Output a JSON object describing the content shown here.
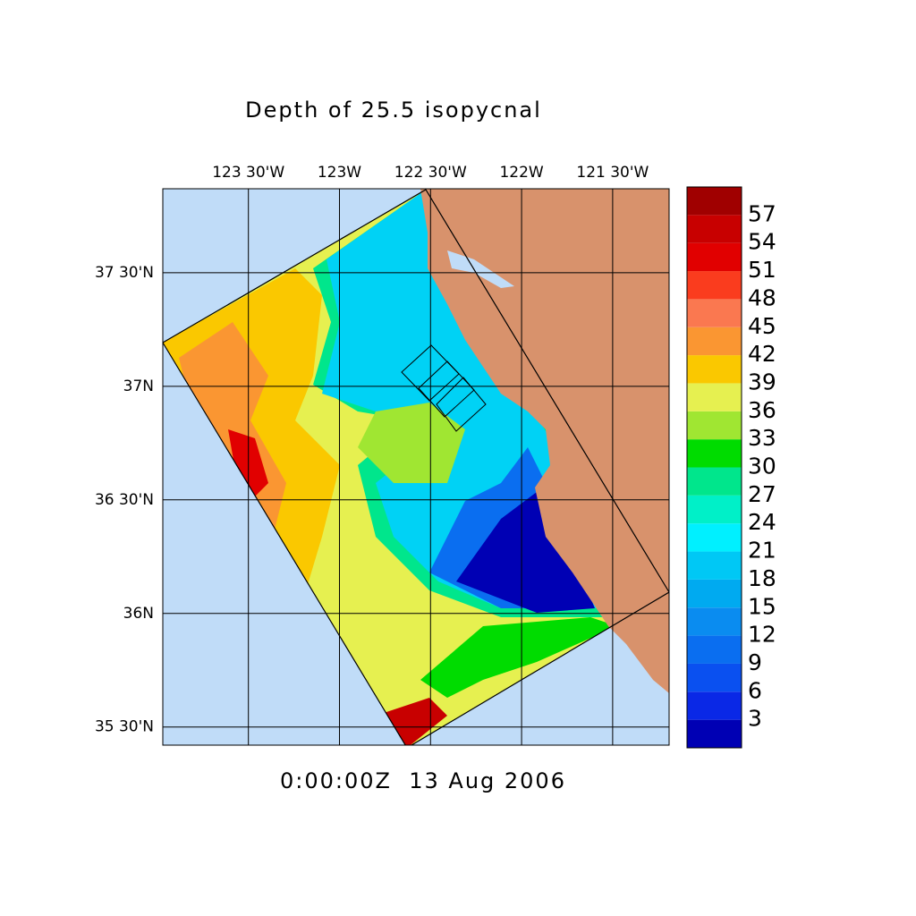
{
  "title": "Depth of 25.5 isopycnal",
  "timestamp": "0:00:00Z  13 Aug 2006",
  "map": {
    "xlim": [
      -123.97,
      -121.19
    ],
    "ylim": [
      35.42,
      37.87
    ],
    "lon_ticks": [
      {
        "value": -123.5,
        "label": "123 30'W"
      },
      {
        "value": -123,
        "label": "123W"
      },
      {
        "value": -122.5,
        "label": "122 30'W"
      },
      {
        "value": -122,
        "label": "122W"
      },
      {
        "value": -121.5,
        "label": "121 30'W"
      }
    ],
    "lat_ticks": [
      {
        "value": 37.5,
        "label": "37 30'N"
      },
      {
        "value": 37,
        "label": "37N"
      },
      {
        "value": 36.5,
        "label": "36 30'N"
      },
      {
        "value": 36,
        "label": "36N"
      },
      {
        "value": 35.5,
        "label": "35 30'N"
      }
    ],
    "grid": true
  },
  "colorbar": {
    "levels": [
      3,
      6,
      9,
      12,
      15,
      18,
      21,
      24,
      27,
      30,
      33,
      36,
      39,
      42,
      45,
      48,
      51,
      54,
      57
    ],
    "colors": [
      "#0000b4",
      "#0a28e6",
      "#0a50f0",
      "#0a6ef0",
      "#0a8cf0",
      "#00aaf0",
      "#00c8f5",
      "#00f0ff",
      "#00f0c8",
      "#00e68c",
      "#00dc00",
      "#a0e632",
      "#e6f050",
      "#fac800",
      "#fa9632",
      "#fa7850",
      "#fa3c1e",
      "#e10000",
      "#c80000",
      "#a00000"
    ]
  }
}
